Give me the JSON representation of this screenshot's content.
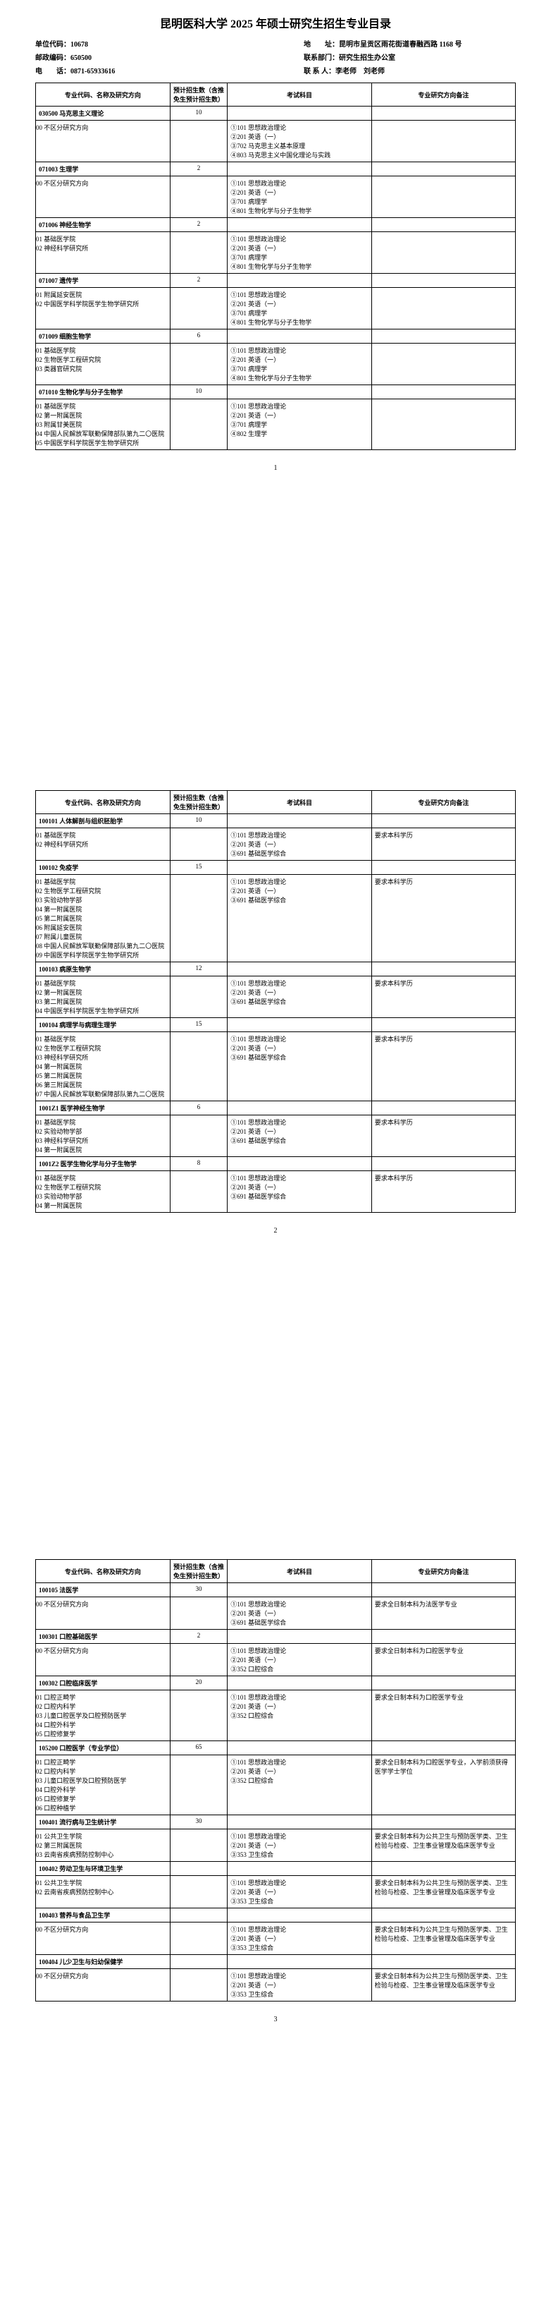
{
  "doc_title": "昆明医科大学 2025 年硕士研究生招生专业目录",
  "header": {
    "unit_code_label": "单位代码：",
    "unit_code": "10678",
    "address_label": "地　　址：",
    "address": "昆明市呈贡区雨花街道春融西路 1168 号",
    "postal_label": "邮政编码：",
    "postal": "650500",
    "dept_label": "联系部门：",
    "dept": "研究生招生办公室",
    "phone_label": "电　　话：",
    "phone": "0871-65933616",
    "contact_label": "联 系 人：",
    "contact": "李老师　刘老师"
  },
  "table_headers": {
    "major": "专业代码、名称及研究方向",
    "quota": "预计招生数（含推免生预计招生数）",
    "exam": "考试科目",
    "note": "专业研究方向备注"
  },
  "pages": [
    {
      "num": "1",
      "rows": [
        {
          "major": "030500 马克思主义理论",
          "bold": true,
          "quota": "10",
          "exam": "",
          "note": ""
        },
        {
          "major": "00 不区分研究方向",
          "quota": "",
          "exam": "①101 思想政治理论\n②201 英语（一）\n③702 马克思主义基本原理\n④803 马克思主义中国化理论与实践",
          "note": ""
        },
        {
          "major": "071003 生理学",
          "bold": true,
          "quota": "2",
          "exam": "",
          "note": ""
        },
        {
          "major": "00 不区分研究方向",
          "quota": "",
          "exam": "①101 思想政治理论\n②201 英语（一）\n③701 病理学\n④801 生物化学与分子生物学",
          "note": ""
        },
        {
          "major": "071006 神经生物学",
          "bold": true,
          "quota": "2",
          "exam": "",
          "note": ""
        },
        {
          "major": "01 基础医学院\n02 神经科学研究所",
          "quota": "",
          "exam": "①101 思想政治理论\n②201 英语（一）\n③701 病理学\n④801 生物化学与分子生物学",
          "note": ""
        },
        {
          "major": "071007 遗传学",
          "bold": true,
          "quota": "2",
          "exam": "",
          "note": ""
        },
        {
          "major": "01 附属延安医院\n02 中国医学科学院医学生物学研究所",
          "quota": "",
          "exam": "①101 思想政治理论\n②201 英语（一）\n③701 病理学\n④801 生物化学与分子生物学",
          "note": ""
        },
        {
          "major": "071009 细胞生物学",
          "bold": true,
          "quota": "6",
          "exam": "",
          "note": ""
        },
        {
          "major": "01 基础医学院\n02 生物医学工程研究院\n03 类器官研究院",
          "quota": "",
          "exam": "①101 思想政治理论\n②201 英语（一）\n③701 病理学\n④801 生物化学与分子生物学",
          "note": ""
        },
        {
          "major": "071010 生物化学与分子生物学",
          "bold": true,
          "quota": "10",
          "exam": "",
          "note": ""
        },
        {
          "major": "01 基础医学院\n02 第一附属医院\n03 附属甘美医院\n04 中国人民解放军联勤保障部队第九二〇医院\n05 中国医学科学院医学生物学研究所",
          "quota": "",
          "exam": "①101 思想政治理论\n②201 英语（一）\n③701 病理学\n④802 生理学",
          "note": ""
        }
      ]
    },
    {
      "num": "2",
      "rows": [
        {
          "major": "100101 人体解剖与组织胚胎学",
          "bold": true,
          "quota": "10",
          "exam": "",
          "note": ""
        },
        {
          "major": "01 基础医学院\n02 神经科学研究所",
          "quota": "",
          "exam": "①101 思想政治理论\n②201 英语（一）\n③691 基础医学综合",
          "note": "要求本科学历"
        },
        {
          "major": "100102 免疫学",
          "bold": true,
          "quota": "15",
          "exam": "",
          "note": ""
        },
        {
          "major": "01 基础医学院\n02 生物医学工程研究院\n03 实验动物学部\n04 第一附属医院\n05 第二附属医院\n06 附属延安医院\n07 附属儿童医院\n08 中国人民解放军联勤保障部队第九二〇医院\n09 中国医学科学院医学生物学研究所",
          "quota": "",
          "exam": "①101 思想政治理论\n②201 英语（一）\n③691 基础医学综合",
          "note": "要求本科学历"
        },
        {
          "major": "100103 病原生物学",
          "bold": true,
          "quota": "12",
          "exam": "",
          "note": ""
        },
        {
          "major": "01 基础医学院\n02 第一附属医院\n03 第二附属医院\n04 中国医学科学院医学生物学研究所",
          "quota": "",
          "exam": "①101 思想政治理论\n②201 英语（一）\n③691 基础医学综合",
          "note": "要求本科学历"
        },
        {
          "major": "100104 病理学与病理生理学",
          "bold": true,
          "quota": "15",
          "exam": "",
          "note": ""
        },
        {
          "major": "01 基础医学院\n02 生物医学工程研究院\n03 神经科学研究所\n04 第一附属医院\n05 第二附属医院\n06 第三附属医院\n07 中国人民解放军联勤保障部队第九二〇医院",
          "quota": "",
          "exam": "①101 思想政治理论\n②201 英语（一）\n③691 基础医学综合",
          "note": "要求本科学历"
        },
        {
          "major": "1001Z1 医学神经生物学",
          "bold": true,
          "quota": "6",
          "exam": "",
          "note": ""
        },
        {
          "major": "01 基础医学院\n02 实验动物学部\n03 神经科学研究所\n04 第一附属医院",
          "quota": "",
          "exam": "①101 思想政治理论\n②201 英语（一）\n③691 基础医学综合",
          "note": "要求本科学历"
        },
        {
          "major": "1001Z2 医学生物化学与分子生物学",
          "bold": true,
          "quota": "8",
          "exam": "",
          "note": ""
        },
        {
          "major": "01 基础医学院\n02 生物医学工程研究院\n03 实验动物学部\n04 第一附属医院",
          "quota": "",
          "exam": "①101 思想政治理论\n②201 英语（一）\n③691 基础医学综合",
          "note": "要求本科学历"
        }
      ]
    },
    {
      "num": "3",
      "rows": [
        {
          "major": "100105 法医学",
          "bold": true,
          "quota": "30",
          "exam": "",
          "note": ""
        },
        {
          "major": "00 不区分研究方向",
          "quota": "",
          "exam": "①101 思想政治理论\n②201 英语（一）\n③691 基础医学综合",
          "note": "要求全日制本科为法医学专业"
        },
        {
          "major": "100301 口腔基础医学",
          "bold": true,
          "quota": "2",
          "exam": "",
          "note": ""
        },
        {
          "major": "00 不区分研究方向",
          "quota": "",
          "exam": "①101 思想政治理论\n②201 英语（一）\n③352 口腔综合",
          "note": "要求全日制本科为口腔医学专业"
        },
        {
          "major": "100302 口腔临床医学",
          "bold": true,
          "quota": "20",
          "exam": "",
          "note": ""
        },
        {
          "major": "01 口腔正畸学\n02 口腔内科学\n03 儿童口腔医学及口腔预防医学\n04 口腔外科学\n05 口腔修复学",
          "quota": "",
          "exam": "①101 思想政治理论\n②201 英语（一）\n③352 口腔综合",
          "note": "要求全日制本科为口腔医学专业"
        },
        {
          "major": "105200 口腔医学（专业学位）",
          "bold": true,
          "quota": "65",
          "exam": "",
          "note": ""
        },
        {
          "major": "01 口腔正畸学\n02 口腔内科学\n03 儿童口腔医学及口腔预防医学\n04 口腔外科学\n05 口腔修复学\n06 口腔种植学",
          "quota": "",
          "exam": "①101 思想政治理论\n②201 英语（一）\n③352 口腔综合",
          "note": "要求全日制本科为口腔医学专业，入学前须获得医学学士学位"
        },
        {
          "major": "100401 流行病与卫生统计学",
          "bold": true,
          "quota": "30",
          "exam": "",
          "note": ""
        },
        {
          "major": "01 公共卫生学院\n02 第三附属医院\n03 云南省疾病预防控制中心",
          "quota": "",
          "exam": "①101 思想政治理论\n②201 英语（一）\n③353 卫生综合",
          "note": "要求全日制本科为公共卫生与预防医学类、卫生检验与检疫、卫生事业管理及临床医学专业"
        },
        {
          "major": "100402 劳动卫生与环境卫生学",
          "bold": true,
          "quota": "",
          "exam": "",
          "note": ""
        },
        {
          "major": "01 公共卫生学院\n02 云南省疾病预防控制中心",
          "quota": "",
          "exam": "①101 思想政治理论\n②201 英语（一）\n③353 卫生综合",
          "note": "要求全日制本科为公共卫生与预防医学类、卫生检验与检疫、卫生事业管理及临床医学专业"
        },
        {
          "major": "100403 营养与食品卫生学",
          "bold": true,
          "quota": "",
          "exam": "",
          "note": ""
        },
        {
          "major": "00 不区分研究方向",
          "quota": "",
          "exam": "①101 思想政治理论\n②201 英语（一）\n③353 卫生综合",
          "note": "要求全日制本科为公共卫生与预防医学类、卫生检验与检疫、卫生事业管理及临床医学专业"
        },
        {
          "major": "100404 儿少卫生与妇幼保健学",
          "bold": true,
          "quota": "",
          "exam": "",
          "note": ""
        },
        {
          "major": "00 不区分研究方向",
          "quota": "",
          "exam": "①101 思想政治理论\n②201 英语（一）\n③353 卫生综合",
          "note": "要求全日制本科为公共卫生与预防医学类、卫生检验与检疫、卫生事业管理及临床医学专业"
        }
      ]
    }
  ]
}
